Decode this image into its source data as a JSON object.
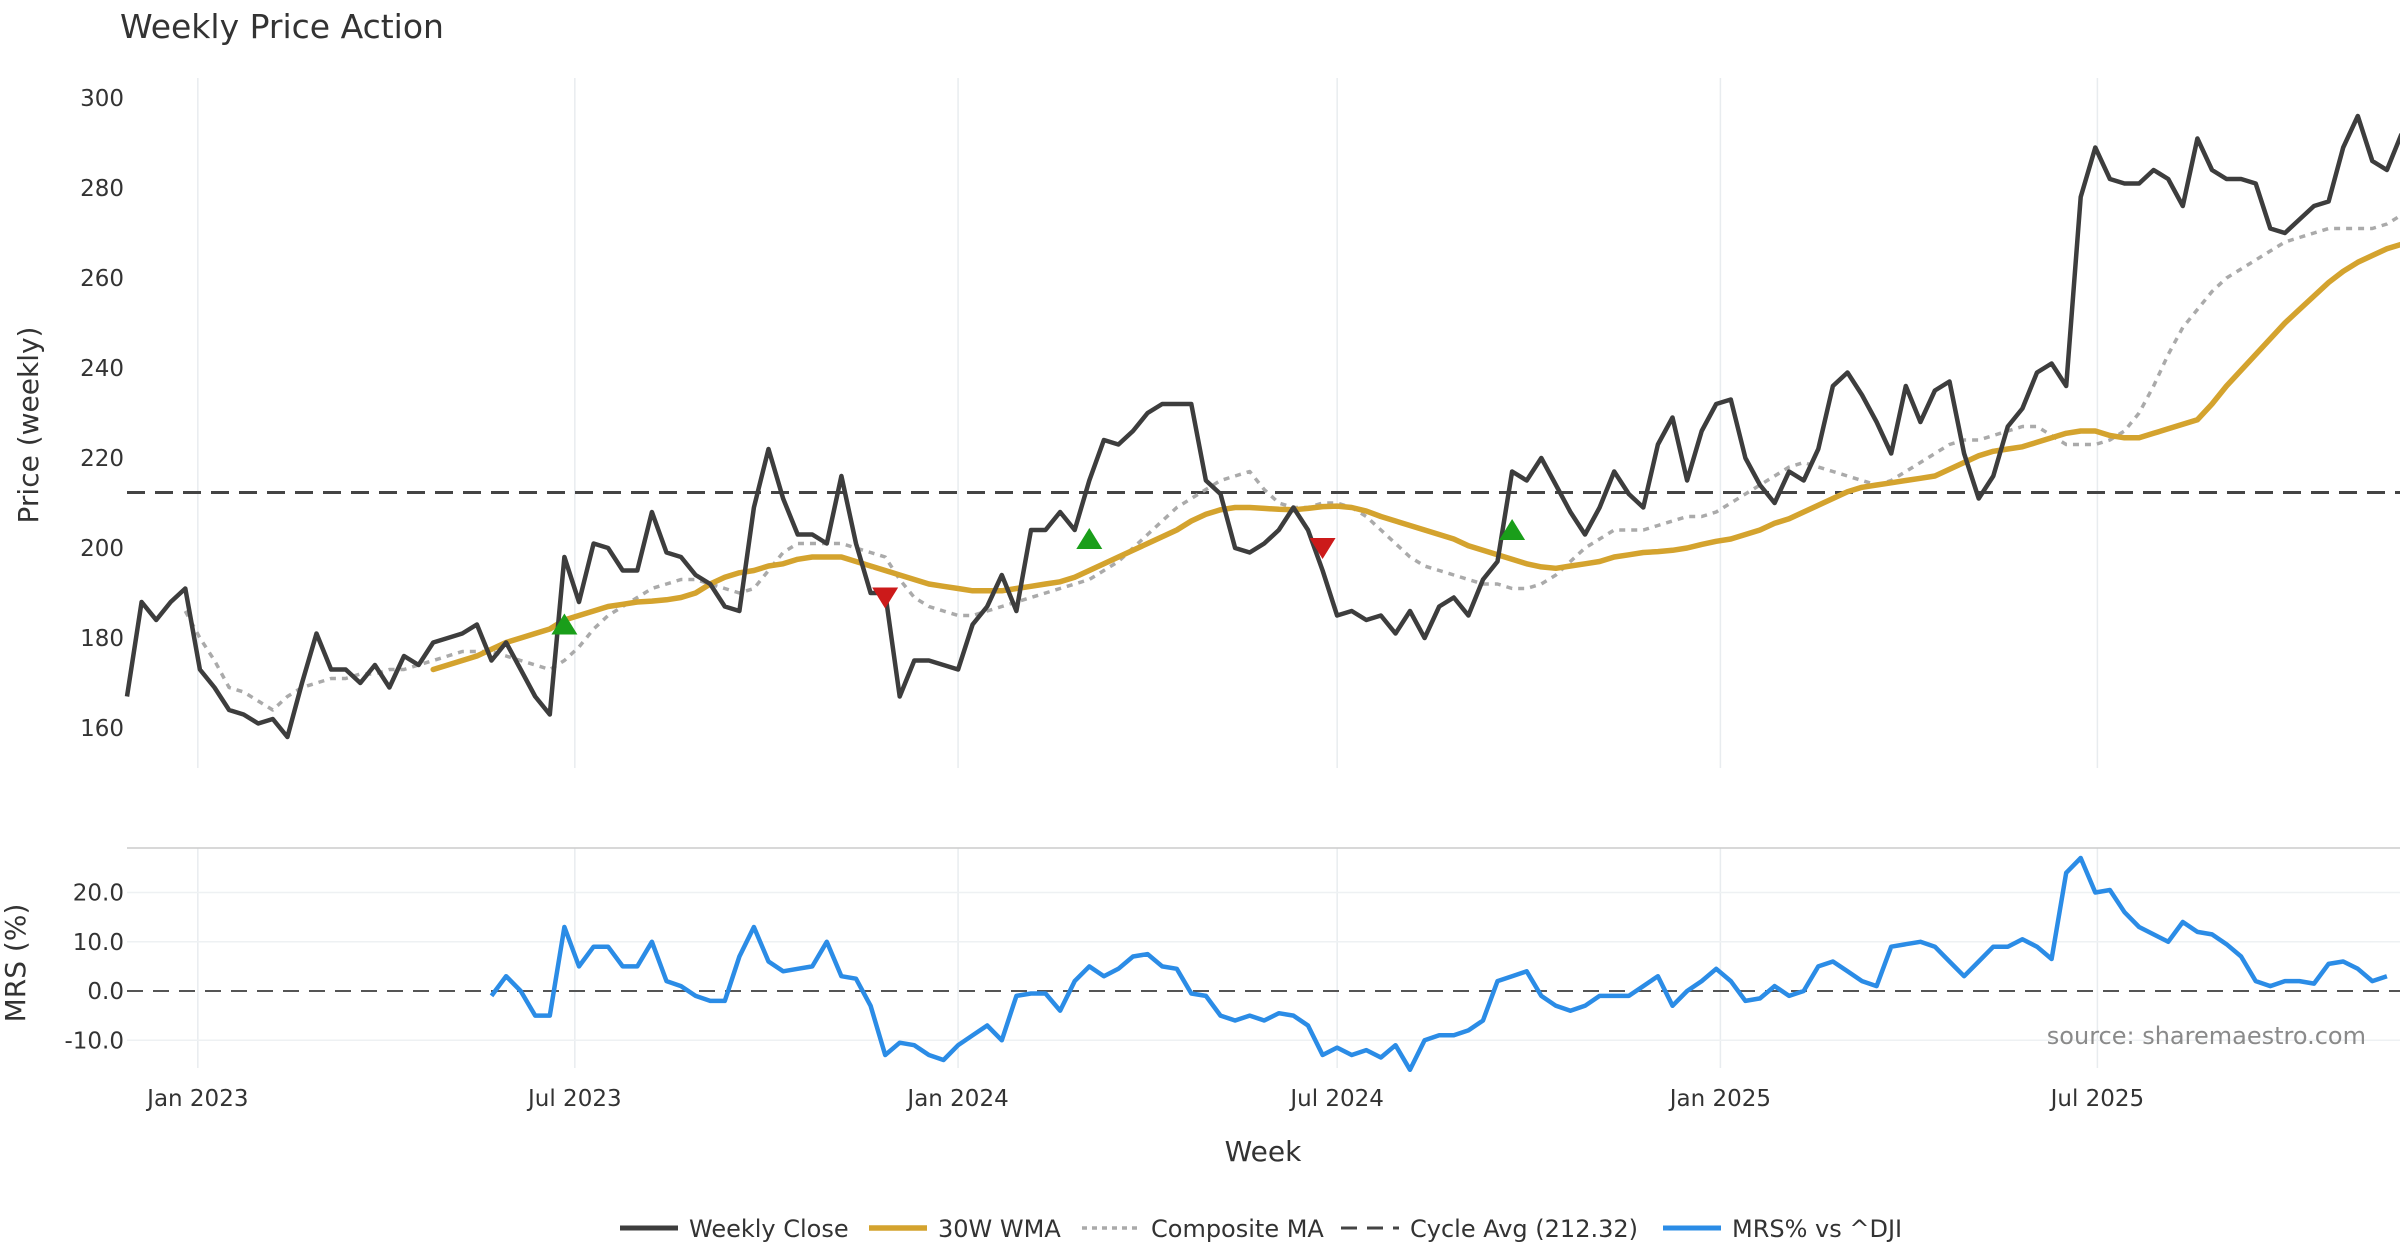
{
  "chart_data": {
    "type": "line",
    "title": "Weekly Price Action",
    "xlabel": "Week",
    "x_ticks": [
      "Jan 2023",
      "Jul 2023",
      "Jan 2024",
      "Jul 2024",
      "Jan 2025",
      "Jul 2025"
    ],
    "source": "source: sharemaestro.com",
    "price_panel": {
      "ylabel": "Price (weekly)",
      "ylim": [
        150,
        304
      ],
      "y_ticks": [
        160,
        180,
        200,
        220,
        240,
        260,
        280,
        300
      ],
      "cycle_avg": 212.32,
      "series": [
        {
          "name": "Weekly Close",
          "color": "#3d3d3d",
          "start": "2022-11-28",
          "values": [
            167,
            188,
            184,
            188,
            191,
            173,
            169,
            164,
            163,
            161,
            162,
            158,
            170,
            181,
            173,
            173,
            170,
            174,
            169,
            176,
            174,
            179,
            180,
            181,
            183,
            175,
            179,
            173,
            167,
            163,
            198,
            188,
            201,
            200,
            195,
            195,
            208,
            199,
            198,
            194,
            192,
            187,
            186,
            209,
            222,
            211,
            203,
            203,
            201,
            216,
            201,
            190,
            190,
            167,
            175,
            175,
            174,
            173,
            183,
            187,
            194,
            186,
            204,
            204,
            208,
            204,
            215,
            224,
            223,
            226,
            230,
            232,
            232,
            232,
            215,
            212,
            200,
            199,
            201,
            204,
            209,
            204,
            195,
            185,
            186,
            184,
            185,
            181,
            186,
            180,
            187,
            189,
            185,
            193,
            197,
            217,
            215,
            220,
            214,
            208,
            203,
            209,
            217,
            212,
            209,
            223,
            229,
            215,
            226,
            232,
            233,
            220,
            214,
            210,
            217,
            215,
            222,
            236,
            239,
            234,
            228,
            221,
            236,
            228,
            235,
            237,
            221,
            211,
            216,
            227,
            231,
            239,
            241,
            236,
            278,
            289,
            282,
            281,
            281,
            284,
            282,
            276,
            291,
            284,
            282,
            282,
            281,
            271,
            270,
            273,
            276,
            277,
            289,
            296,
            286,
            284,
            292
          ]
        },
        {
          "name": "30W WMA",
          "color": "#d4a32e",
          "start": "2023-04-24",
          "values": [
            173,
            174,
            175,
            176,
            177.5,
            179,
            180,
            181,
            182,
            184,
            185,
            186,
            187,
            187.5,
            188,
            188.2,
            188.5,
            189,
            190,
            192,
            193.5,
            194.5,
            195,
            196,
            196.5,
            197.5,
            198,
            198,
            198,
            197,
            196,
            195,
            194,
            193,
            192,
            191.5,
            191,
            190.5,
            190.5,
            190.5,
            191,
            191.5,
            192,
            192.5,
            193.5,
            195,
            196.5,
            198,
            199.5,
            201,
            202.5,
            204,
            206,
            207.5,
            208.5,
            209,
            209,
            208.8,
            208.6,
            208.5,
            208.8,
            209.2,
            209.3,
            209,
            208.2,
            207,
            206,
            205,
            204,
            203,
            202,
            200.5,
            199.5,
            198.5,
            197.5,
            196.5,
            195.8,
            195.5,
            196,
            196.5,
            197,
            198,
            198.5,
            199,
            199.2,
            199.5,
            200,
            200.8,
            201.5,
            202,
            203,
            204,
            205.5,
            206.5,
            208,
            209.5,
            211,
            212.5,
            213.5,
            214,
            214.5,
            215,
            215.5,
            216,
            217.5,
            219,
            220.5,
            221.5,
            222,
            222.5,
            223.5,
            224.5,
            225.5,
            226,
            226,
            225,
            224.5,
            224.5,
            225.5,
            226.5,
            227.5,
            228.5,
            232,
            236,
            239.5,
            243,
            246.5,
            250,
            253,
            256,
            259,
            261.5,
            263.5,
            265,
            266.5,
            267.5,
            268.5,
            269.5,
            271,
            273,
            275,
            277,
            278,
            279.5,
            281
          ]
        },
        {
          "name": "Composite MA",
          "color": "#aaaaaa",
          "start": "2022-12-26",
          "values": [
            186,
            180,
            175,
            169,
            168,
            166,
            164,
            167,
            169,
            170,
            171,
            171,
            172,
            172,
            173,
            173,
            174,
            175,
            176,
            177,
            177,
            177,
            176,
            175,
            174,
            173,
            175,
            178,
            182,
            185,
            187,
            189,
            191,
            192,
            193,
            193,
            192,
            191,
            190,
            191,
            195,
            199,
            201,
            201,
            201,
            201,
            200,
            199,
            198,
            193,
            189,
            187,
            186,
            185,
            185,
            186,
            187,
            188,
            189,
            190,
            191,
            192,
            193,
            195,
            197,
            200,
            203,
            206,
            209,
            211,
            213,
            215,
            216,
            217,
            213,
            210,
            209,
            209,
            210,
            210,
            209,
            207,
            204,
            201,
            198,
            196,
            195,
            194,
            193,
            192,
            192,
            191,
            191,
            192,
            194,
            197,
            200,
            202,
            204,
            204,
            204,
            205,
            206,
            207,
            207,
            208,
            210,
            212,
            214,
            216,
            218,
            219,
            218,
            217,
            216,
            215,
            214,
            215,
            217,
            219,
            221,
            223,
            224,
            224,
            225,
            226,
            227,
            227,
            225,
            223,
            223,
            223,
            224,
            226,
            230,
            236,
            243,
            249,
            253,
            257,
            260,
            262,
            264,
            266,
            268,
            269,
            270,
            271,
            271,
            271,
            271,
            272,
            274,
            276,
            278,
            279,
            281
          ]
        },
        {
          "name": "Cycle Avg (212.32)",
          "color": "#444444",
          "dashed": true
        }
      ],
      "signals": [
        {
          "date": "2023-06-26",
          "direction": "up",
          "value": 183
        },
        {
          "date": "2023-11-27",
          "direction": "down",
          "value": 189
        },
        {
          "date": "2024-03-04",
          "direction": "up",
          "value": 202
        },
        {
          "date": "2024-06-24",
          "direction": "down",
          "value": 200
        },
        {
          "date": "2024-09-23",
          "direction": "up",
          "value": 204
        }
      ]
    },
    "mrs_panel": {
      "ylabel": "MRS (%)",
      "ylim": [
        -15,
        28
      ],
      "y_ticks": [
        "20.0",
        "10.0",
        "0.0",
        "-10.0"
      ],
      "series": [
        {
          "name": "MRS% vs ^DJI",
          "color": "#2b8ce6",
          "start": "2023-05-22",
          "values": [
            -1,
            3,
            0,
            -5,
            -5,
            13,
            5,
            9,
            9,
            5,
            5,
            10,
            2,
            1,
            -1,
            -2,
            -2,
            7,
            13,
            6,
            4,
            4.5,
            5,
            10,
            3,
            2.5,
            -3,
            -13,
            -10.5,
            -11,
            -13,
            -14,
            -11,
            -9,
            -7,
            -10,
            -1,
            -0.5,
            -0.5,
            -4,
            2,
            5,
            3,
            4.5,
            7,
            7.5,
            5,
            4.5,
            -0.5,
            -1,
            -5,
            -6,
            -5,
            -6,
            -4.5,
            -5,
            -7,
            -13,
            -11.5,
            -13,
            -12,
            -13.5,
            -11,
            -16,
            -10,
            -9,
            -9,
            -8,
            -6,
            2,
            3,
            4,
            -1,
            -3,
            -4,
            -3,
            -1,
            -1,
            -1,
            1,
            3,
            -3,
            0,
            2,
            4.5,
            2,
            -2,
            -1.5,
            1,
            -1,
            0,
            5,
            6,
            4,
            2,
            1,
            9,
            9.5,
            10,
            9,
            6,
            3,
            6,
            9,
            9,
            10.5,
            9,
            6.5,
            24,
            27,
            20,
            20.5,
            16,
            13,
            11.5,
            10,
            14,
            12,
            11.5,
            9.5,
            7,
            2,
            1,
            2,
            2,
            1.5,
            5.5,
            6,
            4.5,
            2,
            3
          ]
        }
      ]
    }
  }
}
